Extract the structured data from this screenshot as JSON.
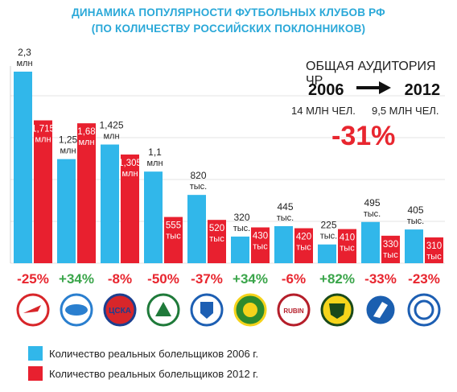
{
  "title_line1": "ДИНАМИКА ПОПУЛЯРНОСТИ ФУТБОЛЬНЫХ КЛУБОВ РФ",
  "title_line2": "(ПО КОЛИЧЕСТВУ РОССИЙСКИХ ПОКЛОННИКОВ)",
  "audience": {
    "title": "ОБЩАЯ АУДИТОРИЯ ЧР",
    "year_from": "2006",
    "year_to": "2012",
    "value_from": "14 МЛН ЧЕЛ.",
    "value_to": "9,5 МЛН ЧЕЛ.",
    "change": "-31%"
  },
  "legend": [
    {
      "label": "Количество реальных болельщиков 2006 г.",
      "color": "#31b7ea"
    },
    {
      "label": "Количество реальных болельщиков 2012 г.",
      "color": "#e8202f"
    }
  ],
  "colors": {
    "y2006": "#31b7ea",
    "y2012": "#e8202f",
    "positive": "#3aa54a",
    "negative": "#e8262f"
  },
  "chart_data": {
    "type": "bar",
    "unit": "thousand fans",
    "categories": [
      "Спартак",
      "Зенит",
      "ЦСКА",
      "Локомотив",
      "Динамо",
      "Кубань",
      "Рубин",
      "Анжи",
      "Крылья Советов",
      "Ростов"
    ],
    "series": [
      {
        "name": "Количество реальных болельщиков 2006 г.",
        "values": [
          2300,
          1250,
          1425,
          1100,
          820,
          320,
          445,
          225,
          495,
          405
        ],
        "labels": [
          [
            "2,3",
            "млн"
          ],
          [
            "1,25",
            "млн"
          ],
          [
            "1,425",
            "млн"
          ],
          [
            "1,1",
            "млн"
          ],
          [
            "820",
            "тыс."
          ],
          [
            "320",
            "тыс."
          ],
          [
            "445",
            "тыс."
          ],
          [
            "225",
            "тыс."
          ],
          [
            "495",
            "тыс."
          ],
          [
            "405",
            "тыс."
          ]
        ]
      },
      {
        "name": "Количество реальных болельщиков 2012 г.",
        "values": [
          1715,
          1680,
          1305,
          555,
          520,
          430,
          420,
          410,
          330,
          310
        ],
        "labels": [
          [
            "1,715",
            "млн"
          ],
          [
            "1,68",
            "млн"
          ],
          [
            "1,305",
            "млн"
          ],
          [
            "555",
            "тыс"
          ],
          [
            "520",
            "тыс"
          ],
          [
            "430",
            "тыс"
          ],
          [
            "420",
            "тыс"
          ],
          [
            "410",
            "тыс"
          ],
          [
            "330",
            "тыс"
          ],
          [
            "310",
            "тыс"
          ]
        ]
      }
    ],
    "changes": [
      "-25%",
      "+34%",
      "-8%",
      "-50%",
      "-37%",
      "+34%",
      "-6%",
      "+82%",
      "-33%",
      "-23%"
    ],
    "logos": [
      {
        "icon": "spartak-logo",
        "text": "",
        "bg": "#ffffff",
        "fg": "#d8262a"
      },
      {
        "icon": "zenit-logo",
        "text": "",
        "bg": "#ffffff",
        "fg": "#2a7fcf"
      },
      {
        "icon": "cska-logo",
        "text": "ЦСКА",
        "bg": "#d8262a",
        "fg": "#1c3f8f"
      },
      {
        "icon": "lokomotiv-logo",
        "text": "",
        "bg": "#ffffff",
        "fg": "#1f7a3a"
      },
      {
        "icon": "dinamo-logo",
        "text": "",
        "bg": "#ffffff",
        "fg": "#1d5fb3"
      },
      {
        "icon": "kuban-logo",
        "text": "",
        "bg": "#2d8a2d",
        "fg": "#f5d31b"
      },
      {
        "icon": "rubin-logo",
        "text": "RUBIN",
        "bg": "#ffffff",
        "fg": "#b51e2a"
      },
      {
        "icon": "anzhi-logo",
        "text": "",
        "bg": "#f6d51b",
        "fg": "#1a4a1a"
      },
      {
        "icon": "krylia-logo",
        "text": "",
        "bg": "#1b5fb0",
        "fg": "#ffffff"
      },
      {
        "icon": "rostov-logo",
        "text": "",
        "bg": "#ffffff",
        "fg": "#1d5fb3"
      }
    ]
  }
}
